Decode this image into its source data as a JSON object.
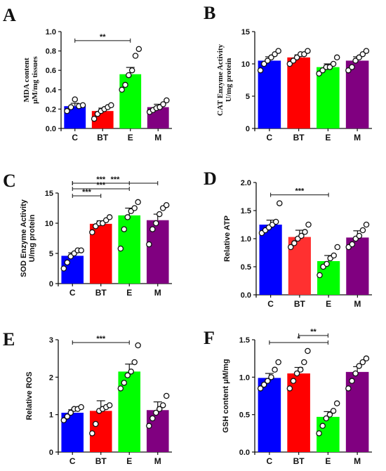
{
  "chart_data": [
    {
      "panel": "A",
      "type": "bar",
      "ylabel": [
        "MDA content",
        "μM/mg tissues"
      ],
      "ylim": [
        0,
        1.0
      ],
      "yticks": [
        "0.0",
        "0.2",
        "0.4",
        "0.6",
        "0.8",
        "1.0"
      ],
      "categories": [
        "C",
        "BT",
        "E",
        "M"
      ],
      "values": [
        0.23,
        0.18,
        0.56,
        0.22
      ],
      "errors": [
        0.03,
        0.03,
        0.07,
        0.03
      ],
      "colors": [
        "#0000ff",
        "#ff0000",
        "#00ff00",
        "#800080"
      ],
      "points": [
        [
          0.18,
          0.22,
          0.3,
          0.23,
          0.24
        ],
        [
          0.1,
          0.15,
          0.18,
          0.2,
          0.22,
          0.24
        ],
        [
          0.4,
          0.45,
          0.55,
          0.6,
          0.75,
          0.82
        ],
        [
          0.17,
          0.19,
          0.21,
          0.22,
          0.25,
          0.29
        ]
      ],
      "significance": [
        {
          "from": 0,
          "to": 2,
          "label": "**"
        }
      ]
    },
    {
      "panel": "B",
      "type": "bar",
      "ylabel": [
        "CAT Enzyme Activity",
        "U/mg protein"
      ],
      "ylim": [
        0,
        15
      ],
      "yticks": [
        "0",
        "5",
        "10",
        "15"
      ],
      "categories": [
        "C",
        "BT",
        "E",
        "M"
      ],
      "values": [
        10.5,
        11.0,
        9.5,
        10.5
      ],
      "errors": [
        0.6,
        0.4,
        0.5,
        0.6
      ],
      "colors": [
        "#0000ff",
        "#ff0000",
        "#00ff00",
        "#800080"
      ],
      "points": [
        [
          9.0,
          10.0,
          10.5,
          11.0,
          11.5,
          12.0
        ],
        [
          10.0,
          10.5,
          11.0,
          11.5,
          11.5,
          12.0
        ],
        [
          8.5,
          9.0,
          9.5,
          9.5,
          10.0,
          11.0
        ],
        [
          9.0,
          9.5,
          10.5,
          11.0,
          11.5,
          12.0
        ]
      ],
      "significance": []
    },
    {
      "panel": "C",
      "type": "bar",
      "ylabel": [
        "SOD Enzyme Activity",
        "U/mg protein"
      ],
      "ylim": [
        0,
        15
      ],
      "yticks": [
        "0",
        "5",
        "10",
        "15"
      ],
      "categories": [
        "C",
        "BT",
        "E",
        "M"
      ],
      "values": [
        4.6,
        9.9,
        11.3,
        10.5
      ],
      "errors": [
        0.5,
        0.5,
        1.2,
        1.0
      ],
      "colors": [
        "#0000ff",
        "#ff0000",
        "#00ff00",
        "#800080"
      ],
      "points": [
        [
          2.5,
          3.5,
          4.5,
          5.0,
          5.5,
          5.5
        ],
        [
          8.5,
          9.5,
          10.0,
          10.0,
          10.5,
          11.0
        ],
        [
          5.8,
          9.0,
          11.0,
          12.0,
          12.5,
          13.5
        ],
        [
          6.5,
          9.0,
          10.0,
          11.5,
          12.5,
          13.0
        ]
      ],
      "significance": [
        {
          "from": 0,
          "to": 1,
          "label": "***"
        },
        {
          "from": 0,
          "to": 2,
          "label": "***"
        },
        {
          "from": 0,
          "to": 2,
          "label": "***"
        },
        {
          "from": 0,
          "to": 3,
          "label": "***"
        }
      ]
    },
    {
      "panel": "D",
      "type": "bar",
      "ylabel": [
        "Relative ATP"
      ],
      "ylim": [
        0,
        2.0
      ],
      "yticks": [
        "0.0",
        "0.5",
        "1.0",
        "1.5",
        "2.0"
      ],
      "categories": [
        "C",
        "BT",
        "E",
        "M"
      ],
      "values": [
        1.25,
        1.03,
        0.6,
        1.02
      ],
      "errors": [
        0.08,
        0.12,
        0.1,
        0.12
      ],
      "colors": [
        "#0000ff",
        "#ff3030",
        "#00ff00",
        "#800080"
      ],
      "points": [
        [
          1.1,
          1.15,
          1.2,
          1.25,
          1.3,
          1.63
        ],
        [
          0.85,
          0.92,
          1.0,
          1.05,
          1.12,
          1.25
        ],
        [
          0.35,
          0.5,
          0.55,
          0.65,
          0.7,
          0.85
        ],
        [
          0.85,
          0.9,
          1.0,
          1.05,
          1.15,
          1.25
        ]
      ],
      "significance": [
        {
          "from": 0,
          "to": 2,
          "label": "***"
        }
      ]
    },
    {
      "panel": "E",
      "type": "bar",
      "ylabel": [
        "Relative ROS"
      ],
      "ylim": [
        0,
        3
      ],
      "yticks": [
        "0",
        "1",
        "2",
        "3"
      ],
      "categories": [
        "C",
        "BT",
        "E",
        "M"
      ],
      "values": [
        1.05,
        1.1,
        2.15,
        1.12
      ],
      "errors": [
        0.08,
        0.27,
        0.2,
        0.22
      ],
      "colors": [
        "#0000ff",
        "#ff0000",
        "#00ff00",
        "#800080"
      ],
      "points": [
        [
          0.85,
          0.95,
          1.05,
          1.15,
          1.15,
          1.2
        ],
        [
          0.5,
          0.75,
          1.1,
          1.15,
          1.2,
          1.25
        ],
        [
          1.7,
          1.85,
          2.05,
          2.15,
          2.4,
          2.85
        ],
        [
          0.7,
          0.9,
          1.05,
          1.15,
          1.25,
          1.5
        ]
      ],
      "significance": [
        {
          "from": 0,
          "to": 2,
          "label": "***"
        }
      ]
    },
    {
      "panel": "F",
      "type": "bar",
      "ylabel": [
        "GSH content μM/mg"
      ],
      "ylim": [
        0,
        1.5
      ],
      "yticks": [
        "0.0",
        "0.5",
        "1.0",
        "1.5"
      ],
      "categories": [
        "C",
        "BT",
        "E",
        "M"
      ],
      "values": [
        0.99,
        1.05,
        0.47,
        1.07
      ],
      "errors": [
        0.06,
        0.08,
        0.07,
        0.07
      ],
      "colors": [
        "#0000ff",
        "#ff0000",
        "#00ff00",
        "#800080"
      ],
      "points": [
        [
          0.85,
          0.9,
          0.95,
          1.0,
          1.1,
          1.2
        ],
        [
          0.85,
          0.95,
          1.05,
          1.1,
          1.2,
          1.35
        ],
        [
          0.25,
          0.35,
          0.45,
          0.5,
          0.55,
          0.65
        ],
        [
          0.85,
          0.95,
          1.05,
          1.15,
          1.2,
          1.25
        ]
      ],
      "significance": [
        {
          "from": 0,
          "to": 2,
          "label": "*"
        },
        {
          "from": 1,
          "to": 2,
          "label": "**"
        }
      ]
    }
  ]
}
